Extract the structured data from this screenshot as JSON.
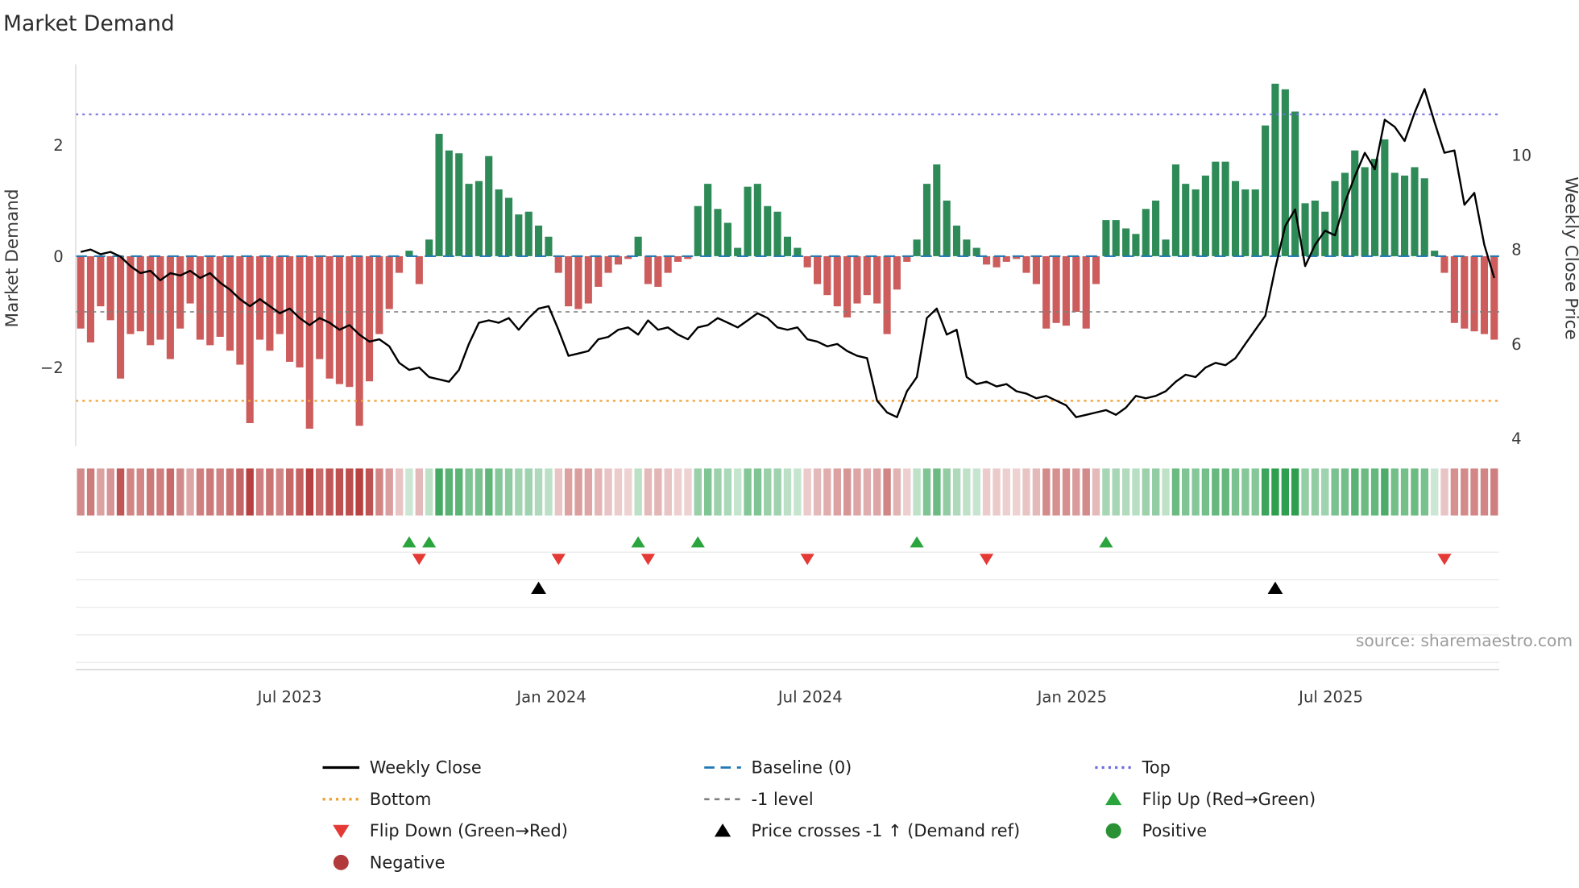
{
  "title": "Market Demand",
  "source": "source: sharemaestro.com",
  "colors": {
    "price_line": "#000000",
    "baseline": "#1f77b4",
    "top": "#6b6be0",
    "bottom": "#ef9f2f",
    "minus_one": "#7f7f7f",
    "flip_up": "#2aa43c",
    "flip_down": "#e53935",
    "price_cross": "#000000",
    "positive_dot": "#2a9235",
    "negative_dot": "#b23a3a",
    "positive_bar": "#2e8b57",
    "negative_bar": "#cd5c5c",
    "heat_positive": "#2e9e4f",
    "heat_negative": "#b74040"
  },
  "chart_data": {
    "type": "bar+line",
    "title": "Market Demand",
    "x_unit": "week",
    "ylabel_left": "Market Demand",
    "ylabel_right": "Weekly Close Price",
    "left_ylim": [
      -3.45,
      3.45
    ],
    "right_ylim": [
      3.8,
      11.9
    ],
    "left_ticks": [
      {
        "value": 2,
        "label": "2"
      },
      {
        "value": 0,
        "label": "0"
      },
      {
        "value": -2,
        "label": "−2"
      }
    ],
    "right_ticks": [
      {
        "value": 10,
        "label": "10"
      },
      {
        "value": 8,
        "label": "8"
      },
      {
        "value": 6,
        "label": "6"
      },
      {
        "value": 4,
        "label": "4"
      }
    ],
    "x_ticks": [
      {
        "pos": 21,
        "label": "Jul 2023"
      },
      {
        "pos": 47.3,
        "label": "Jan 2024"
      },
      {
        "pos": 73.3,
        "label": "Jul 2024"
      },
      {
        "pos": 99.6,
        "label": "Jan 2025"
      },
      {
        "pos": 125.6,
        "label": "Jul 2025"
      }
    ],
    "levels": {
      "baseline": 0,
      "minus_one": -1,
      "top": 2.55,
      "bottom": -2.6
    },
    "series": [
      {
        "name": "Market Demand",
        "type": "bar",
        "axis": "left",
        "values": [
          -1.3,
          -1.55,
          -0.9,
          -1.15,
          -2.2,
          -1.4,
          -1.35,
          -1.6,
          -1.5,
          -1.85,
          -1.3,
          -0.85,
          -1.5,
          -1.6,
          -1.45,
          -1.7,
          -1.95,
          -3.0,
          -1.5,
          -1.7,
          -1.4,
          -1.9,
          -2.0,
          -3.1,
          -1.85,
          -2.2,
          -2.3,
          -2.35,
          -3.05,
          -2.25,
          -1.4,
          -0.95,
          -0.3,
          0.1,
          -0.5,
          0.3,
          2.2,
          1.9,
          1.85,
          1.3,
          1.35,
          1.8,
          1.2,
          1.05,
          0.75,
          0.8,
          0.55,
          0.35,
          -0.3,
          -0.9,
          -0.95,
          -0.85,
          -0.55,
          -0.3,
          -0.15,
          -0.05,
          0.35,
          -0.5,
          -0.55,
          -0.3,
          -0.1,
          -0.05,
          0.9,
          1.3,
          0.85,
          0.6,
          0.15,
          1.25,
          1.3,
          0.9,
          0.8,
          0.35,
          0.15,
          -0.2,
          -0.5,
          -0.7,
          -0.9,
          -1.1,
          -0.85,
          -0.7,
          -0.85,
          -1.4,
          -0.6,
          -0.1,
          0.3,
          1.3,
          1.65,
          1.0,
          0.55,
          0.3,
          0.15,
          -0.15,
          -0.2,
          -0.1,
          -0.05,
          -0.3,
          -0.5,
          -1.3,
          -1.2,
          -1.25,
          -1.0,
          -1.3,
          -0.5,
          0.65,
          0.65,
          0.5,
          0.4,
          0.85,
          1.0,
          0.3,
          1.65,
          1.3,
          1.2,
          1.45,
          1.7,
          1.7,
          1.35,
          1.2,
          1.2,
          2.35,
          3.1,
          3.0,
          2.6,
          0.95,
          1.0,
          0.8,
          1.35,
          1.5,
          1.9,
          1.6,
          1.75,
          2.1,
          1.5,
          1.45,
          1.6,
          1.4,
          0.1,
          -0.3,
          -1.2,
          -1.3,
          -1.35,
          -1.4,
          -1.5
        ]
      },
      {
        "name": "Weekly Close",
        "type": "line",
        "axis": "right",
        "values": [
          7.95,
          8.0,
          7.9,
          7.95,
          7.85,
          7.65,
          7.5,
          7.55,
          7.35,
          7.5,
          7.45,
          7.55,
          7.4,
          7.5,
          7.3,
          7.15,
          6.95,
          6.8,
          6.95,
          6.8,
          6.65,
          6.75,
          6.55,
          6.4,
          6.55,
          6.45,
          6.3,
          6.4,
          6.2,
          6.05,
          6.1,
          5.95,
          5.6,
          5.45,
          5.5,
          5.3,
          5.25,
          5.2,
          5.45,
          6.0,
          6.45,
          6.5,
          6.45,
          6.55,
          6.3,
          6.55,
          6.75,
          6.8,
          6.3,
          5.75,
          5.8,
          5.85,
          6.1,
          6.15,
          6.3,
          6.35,
          6.2,
          6.5,
          6.3,
          6.35,
          6.2,
          6.1,
          6.35,
          6.4,
          6.55,
          6.45,
          6.35,
          6.5,
          6.65,
          6.55,
          6.35,
          6.3,
          6.35,
          6.1,
          6.05,
          5.95,
          6.0,
          5.85,
          5.75,
          5.7,
          4.8,
          4.55,
          4.45,
          5.0,
          5.3,
          6.55,
          6.75,
          6.2,
          6.3,
          5.3,
          5.15,
          5.2,
          5.1,
          5.15,
          5.0,
          4.95,
          4.85,
          4.9,
          4.8,
          4.7,
          4.45,
          4.5,
          4.55,
          4.6,
          4.5,
          4.65,
          4.9,
          4.85,
          4.9,
          5.0,
          5.2,
          5.35,
          5.3,
          5.5,
          5.6,
          5.55,
          5.7,
          6.0,
          6.3,
          6.6,
          7.6,
          8.5,
          8.85,
          7.65,
          8.1,
          8.4,
          8.3,
          9.0,
          9.55,
          10.05,
          9.7,
          10.75,
          10.6,
          10.3,
          10.9,
          11.4,
          10.7,
          10.05,
          10.1,
          8.95,
          9.2,
          8.1,
          7.4
        ]
      }
    ],
    "markers": {
      "flip_up_weeks": [
        33,
        35,
        56,
        62,
        84,
        103
      ],
      "flip_down_weeks": [
        34,
        48,
        57,
        73,
        91,
        137
      ],
      "price_cross_up_weeks": [
        46,
        120
      ]
    }
  },
  "legend": {
    "items": [
      {
        "id": "weekly-close",
        "label": "Weekly Close"
      },
      {
        "id": "baseline",
        "label": "Baseline (0)"
      },
      {
        "id": "top",
        "label": "Top"
      },
      {
        "id": "bottom",
        "label": "Bottom"
      },
      {
        "id": "minus-one",
        "label": "-1 level"
      },
      {
        "id": "flip-up",
        "label": "Flip Up (Red→Green)"
      },
      {
        "id": "flip-down",
        "label": "Flip Down (Green→Red)"
      },
      {
        "id": "price-cross",
        "label": "Price crosses -1 ↑ (Demand ref)"
      },
      {
        "id": "positive",
        "label": "Positive"
      },
      {
        "id": "negative",
        "label": "Negative"
      }
    ]
  }
}
